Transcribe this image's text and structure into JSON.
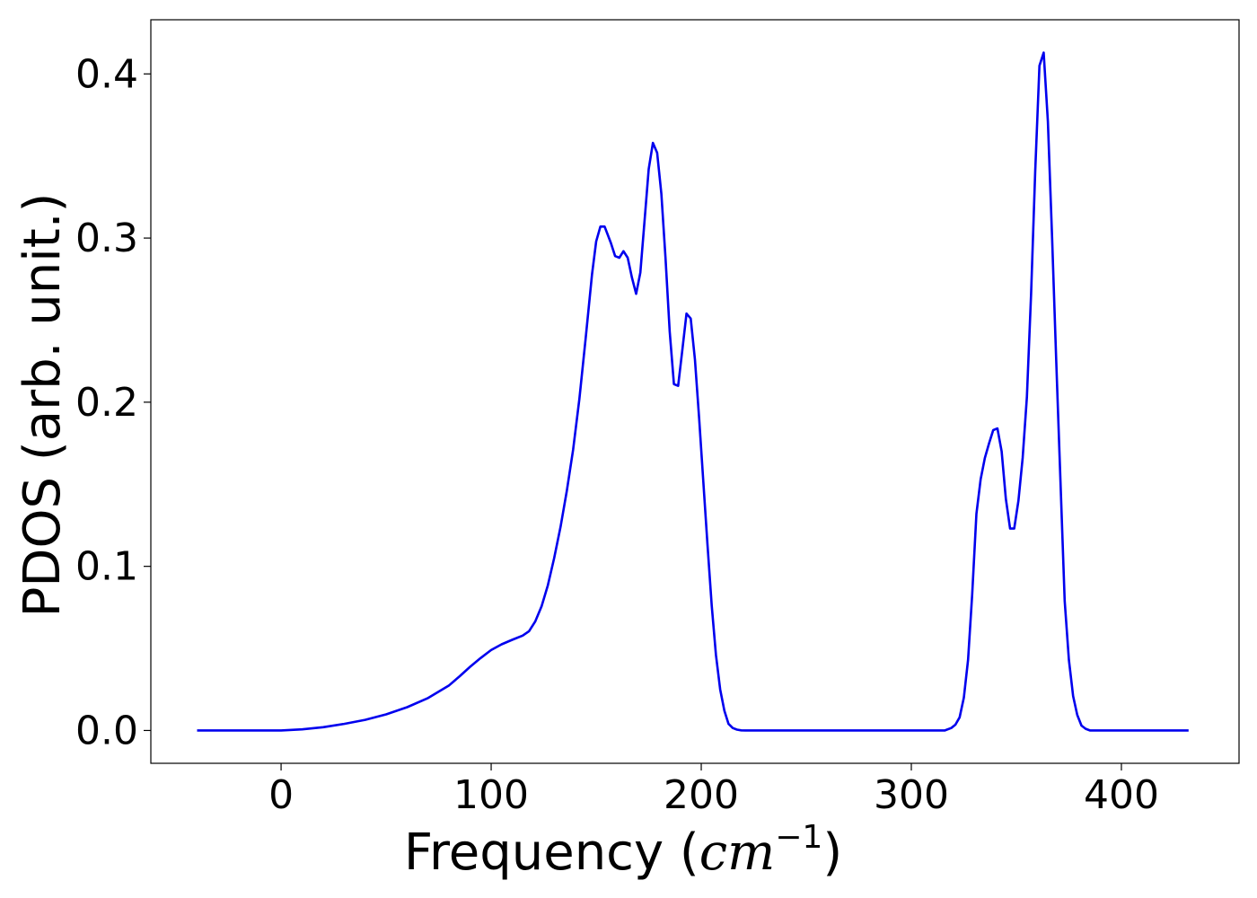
{
  "chart_data": {
    "type": "line",
    "title": "",
    "xlabel_prefix": "Frequency (",
    "xlabel_unit": "cm",
    "xlabel_exponent": "−1",
    "xlabel_suffix": ")",
    "ylabel": "PDOS (arb. unit.)",
    "xlim": [
      -62,
      456
    ],
    "ylim": [
      -0.02,
      0.433
    ],
    "xticks": [
      0,
      100,
      200,
      300,
      400
    ],
    "xtick_labels": [
      "0",
      "100",
      "200",
      "300",
      "400"
    ],
    "yticks": [
      0.0,
      0.1,
      0.2,
      0.3,
      0.4
    ],
    "ytick_labels": [
      "0.0",
      "0.1",
      "0.2",
      "0.3",
      "0.4"
    ],
    "grid": false,
    "legend": false,
    "series": [
      {
        "color": "#0000ee",
        "x": [
          -40,
          0,
          10,
          20,
          30,
          40,
          50,
          60,
          70,
          80,
          85,
          90,
          95,
          100,
          105,
          110,
          115,
          118,
          121,
          124,
          127,
          130,
          133,
          136,
          139,
          142,
          145,
          148,
          150,
          152,
          154,
          157,
          159,
          161,
          163,
          165,
          167,
          169,
          171,
          173,
          175,
          177,
          179,
          181,
          183,
          185,
          187,
          189,
          191,
          193,
          195,
          197,
          199,
          201,
          203,
          205,
          207,
          209,
          211,
          213,
          215,
          217,
          219,
          221,
          223,
          225,
          227,
          230,
          240,
          300,
          316,
          319,
          321,
          323,
          325,
          327,
          329,
          331,
          333,
          335,
          337,
          339,
          341,
          343,
          345,
          347,
          349,
          351,
          353,
          355,
          357,
          359,
          361,
          363,
          365,
          367,
          369,
          371,
          373,
          375,
          377,
          379,
          381,
          383,
          385,
          387,
          389,
          391,
          393,
          395,
          397,
          399,
          401,
          405,
          432
        ],
        "y": [
          0.0,
          0.0,
          0.0007,
          0.002,
          0.004,
          0.0065,
          0.0098,
          0.0142,
          0.0198,
          0.0275,
          0.033,
          0.0388,
          0.0441,
          0.049,
          0.0525,
          0.0552,
          0.0578,
          0.0605,
          0.0665,
          0.0757,
          0.0885,
          0.105,
          0.124,
          0.146,
          0.171,
          0.202,
          0.239,
          0.278,
          0.298,
          0.307,
          0.307,
          0.297,
          0.289,
          0.288,
          0.292,
          0.288,
          0.276,
          0.266,
          0.279,
          0.31,
          0.342,
          0.358,
          0.352,
          0.327,
          0.288,
          0.243,
          0.211,
          0.21,
          0.232,
          0.254,
          0.251,
          0.226,
          0.19,
          0.151,
          0.113,
          0.076,
          0.046,
          0.025,
          0.012,
          0.004,
          0.0015,
          0.0005,
          0.0001,
          0.0,
          0.0,
          0.0,
          0.0,
          0.0,
          0.0,
          0.0,
          0.0,
          0.0015,
          0.0035,
          0.008,
          0.02,
          0.043,
          0.083,
          0.132,
          0.153,
          0.166,
          0.175,
          0.183,
          0.184,
          0.17,
          0.141,
          0.123,
          0.123,
          0.14,
          0.166,
          0.203,
          0.266,
          0.341,
          0.405,
          0.413,
          0.371,
          0.3,
          0.225,
          0.152,
          0.079,
          0.043,
          0.021,
          0.0095,
          0.003,
          0.001,
          0.0,
          0.0,
          0.0,
          0.0,
          0.0,
          0.0,
          0.0,
          0.0,
          0.0,
          0.0,
          0.0
        ]
      }
    ]
  }
}
